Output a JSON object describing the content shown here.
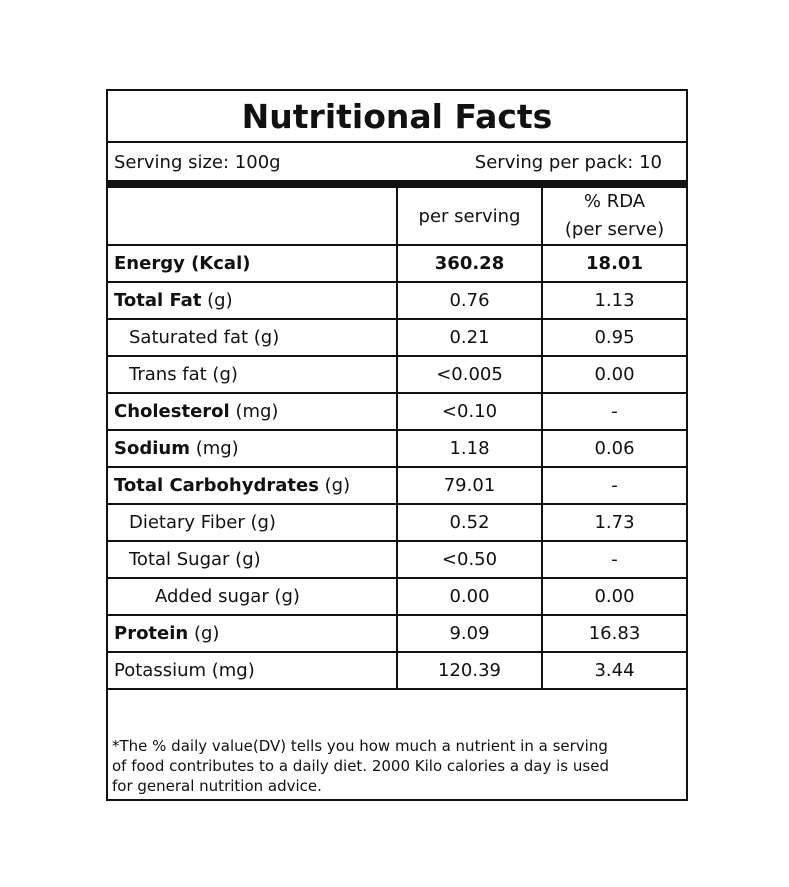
{
  "title": "Nutritional Facts",
  "serving": {
    "size": "Serving size: 100g",
    "per_pack": "Serving per pack: 10"
  },
  "headers": {
    "per_serving": "per serving",
    "rda_line1": "% RDA",
    "rda_line2": "(per serve)"
  },
  "rows": [
    {
      "name": "Energy (Kcal)",
      "per_serving": "360.28",
      "rda": "18.01"
    },
    {
      "name": "Total Fat",
      "unit": " (g)",
      "per_serving": "0.76",
      "rda": "1.13"
    },
    {
      "name": "Saturated fat (g)",
      "per_serving": "0.21",
      "rda": "0.95"
    },
    {
      "name": "Trans fat (g)",
      "per_serving": "<0.005",
      "rda": "0.00"
    },
    {
      "name": "Cholesterol",
      "unit": " (mg)",
      "per_serving": "<0.10",
      "rda": "-"
    },
    {
      "name": "Sodium",
      "unit": " (mg)",
      "per_serving": "1.18",
      "rda": "0.06"
    },
    {
      "name": "Total Carbohydrates",
      "unit": " (g)",
      "per_serving": "79.01",
      "rda": "-"
    },
    {
      "name": "Dietary Fiber (g)",
      "per_serving": "0.52",
      "rda": "1.73"
    },
    {
      "name": "Total Sugar (g)",
      "per_serving": "<0.50",
      "rda": "-"
    },
    {
      "name": "Added sugar (g)",
      "per_serving": "0.00",
      "rda": "0.00"
    },
    {
      "name": "Protein",
      "unit": " (g)",
      "per_serving": "9.09",
      "rda": "16.83"
    },
    {
      "name": "Potassium (mg)",
      "per_serving": "120.39",
      "rda": "3.44"
    }
  ],
  "footnote": {
    "line1": "*The % daily value(DV) tells you how much a nutrient in a serving",
    "line2": "of food contributes to a daily diet. 2000 Kilo calories a day is used",
    "line3": "for general nutrition advice."
  }
}
